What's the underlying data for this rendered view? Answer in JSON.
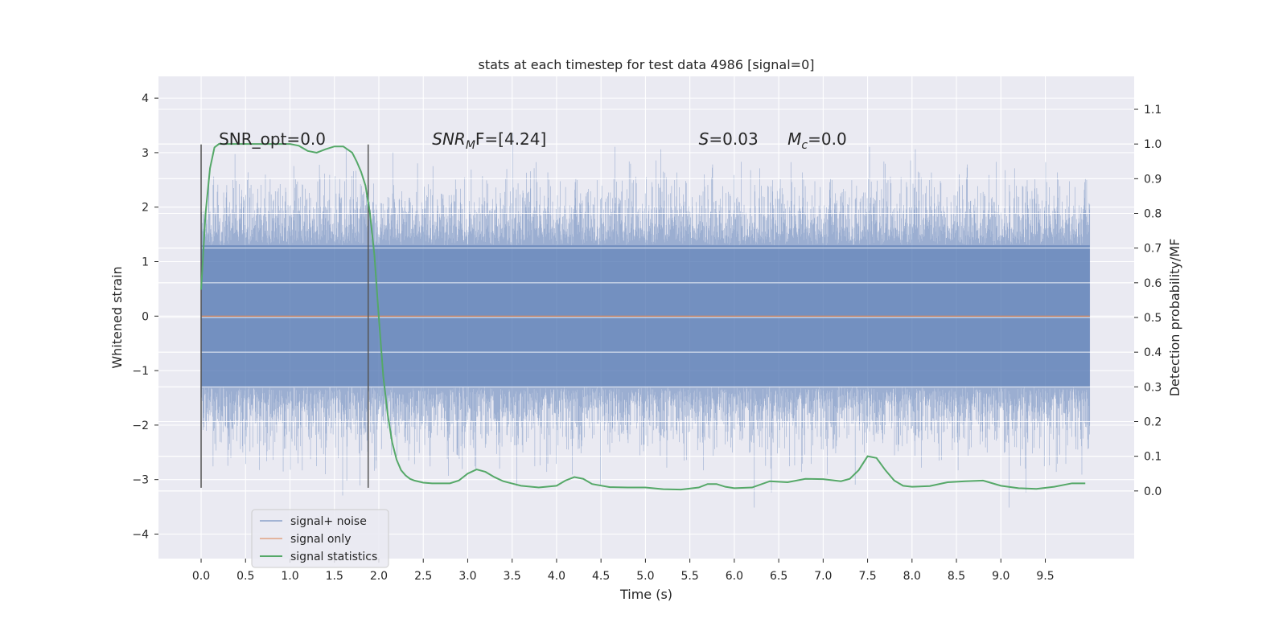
{
  "chart_data": {
    "type": "line",
    "title": "stats at each timestep for test data 4986 [signal=0]",
    "xlabel": "Time (s)",
    "ylabel_left": "Whitened strain",
    "ylabel_right": "Detection probability/MF",
    "xlim": [
      -0.48,
      10.5
    ],
    "ylim_left": [
      -4.45,
      4.4
    ],
    "ylim_right": [
      -0.195,
      1.195
    ],
    "x_ticks": [
      "0.0",
      "0.5",
      "1.0",
      "1.5",
      "2.0",
      "2.5",
      "3.0",
      "3.5",
      "4.0",
      "4.5",
      "5.0",
      "5.5",
      "6.0",
      "6.5",
      "7.0",
      "7.5",
      "8.0",
      "8.5",
      "9.0",
      "9.5"
    ],
    "y_left_ticks": [
      "−4",
      "−3",
      "−2",
      "−1",
      "0",
      "1",
      "2",
      "3",
      "4"
    ],
    "y_right_ticks": [
      "0.0",
      "0.1",
      "0.2",
      "0.3",
      "0.4",
      "0.5",
      "0.6",
      "0.7",
      "0.8",
      "0.9",
      "1.0",
      "1.1"
    ],
    "grid": true,
    "legend_position": "lower-left",
    "colors": {
      "noise": "#4c72b0",
      "signal": "#dd8452",
      "stats": "#55a868",
      "background": "#eaeaf2",
      "vline": "#555555"
    },
    "annotations": [
      {
        "label": "SNR_opt=0.0",
        "x": 0.2,
        "y": 3.25
      },
      {
        "label": "SNR_MF=[4.24]",
        "x": 2.6,
        "y": 3.25
      },
      {
        "label": "S=0.03",
        "x": 5.6,
        "y": 3.25
      },
      {
        "label": "M_c=0.0",
        "x": 6.6,
        "y": 3.25
      }
    ],
    "vlines": [
      {
        "x": 0.0,
        "ymin": -3.15,
        "ymax": 3.15
      },
      {
        "x": 1.88,
        "ymin": -3.15,
        "ymax": 3.15
      }
    ],
    "series": [
      {
        "name": "signal+ noise",
        "kind": "noise",
        "x_range": [
          0,
          10
        ],
        "envelope": 1.3,
        "spike_max": 4.0
      },
      {
        "name": "signal only",
        "kind": "flat",
        "x": [
          0,
          10
        ],
        "y": [
          0,
          0
        ]
      },
      {
        "name": "signal statistics",
        "kind": "line",
        "axis": "right",
        "x": [
          0.0,
          0.05,
          0.1,
          0.15,
          0.2,
          0.3,
          0.5,
          0.7,
          0.9,
          1.0,
          1.1,
          1.2,
          1.3,
          1.4,
          1.5,
          1.6,
          1.7,
          1.75,
          1.8,
          1.85,
          1.9,
          1.95,
          2.0,
          2.05,
          2.1,
          2.15,
          2.2,
          2.25,
          2.3,
          2.35,
          2.4,
          2.5,
          2.6,
          2.8,
          2.9,
          3.0,
          3.1,
          3.2,
          3.3,
          3.4,
          3.6,
          3.8,
          4.0,
          4.1,
          4.2,
          4.3,
          4.4,
          4.6,
          4.8,
          5.0,
          5.2,
          5.4,
          5.6,
          5.7,
          5.8,
          5.9,
          6.0,
          6.2,
          6.4,
          6.6,
          6.8,
          7.0,
          7.2,
          7.3,
          7.4,
          7.5,
          7.6,
          7.7,
          7.8,
          7.9,
          8.0,
          8.2,
          8.4,
          8.6,
          8.8,
          9.0,
          9.2,
          9.4,
          9.6,
          9.8,
          9.95
        ],
        "y": [
          0.58,
          0.8,
          0.93,
          0.99,
          1.0,
          1.0,
          1.0,
          1.0,
          1.0,
          1.0,
          0.995,
          0.98,
          0.975,
          0.985,
          0.993,
          0.993,
          0.975,
          0.95,
          0.92,
          0.88,
          0.8,
          0.68,
          0.5,
          0.33,
          0.22,
          0.14,
          0.09,
          0.06,
          0.045,
          0.035,
          0.03,
          0.024,
          0.022,
          0.022,
          0.03,
          0.05,
          0.062,
          0.055,
          0.04,
          0.028,
          0.015,
          0.01,
          0.015,
          0.03,
          0.04,
          0.035,
          0.02,
          0.011,
          0.01,
          0.01,
          0.005,
          0.004,
          0.01,
          0.02,
          0.02,
          0.012,
          0.008,
          0.01,
          0.028,
          0.025,
          0.035,
          0.034,
          0.028,
          0.035,
          0.06,
          0.1,
          0.095,
          0.06,
          0.03,
          0.015,
          0.012,
          0.014,
          0.025,
          0.028,
          0.03,
          0.015,
          0.008,
          0.006,
          0.012,
          0.022,
          0.022
        ]
      }
    ]
  }
}
